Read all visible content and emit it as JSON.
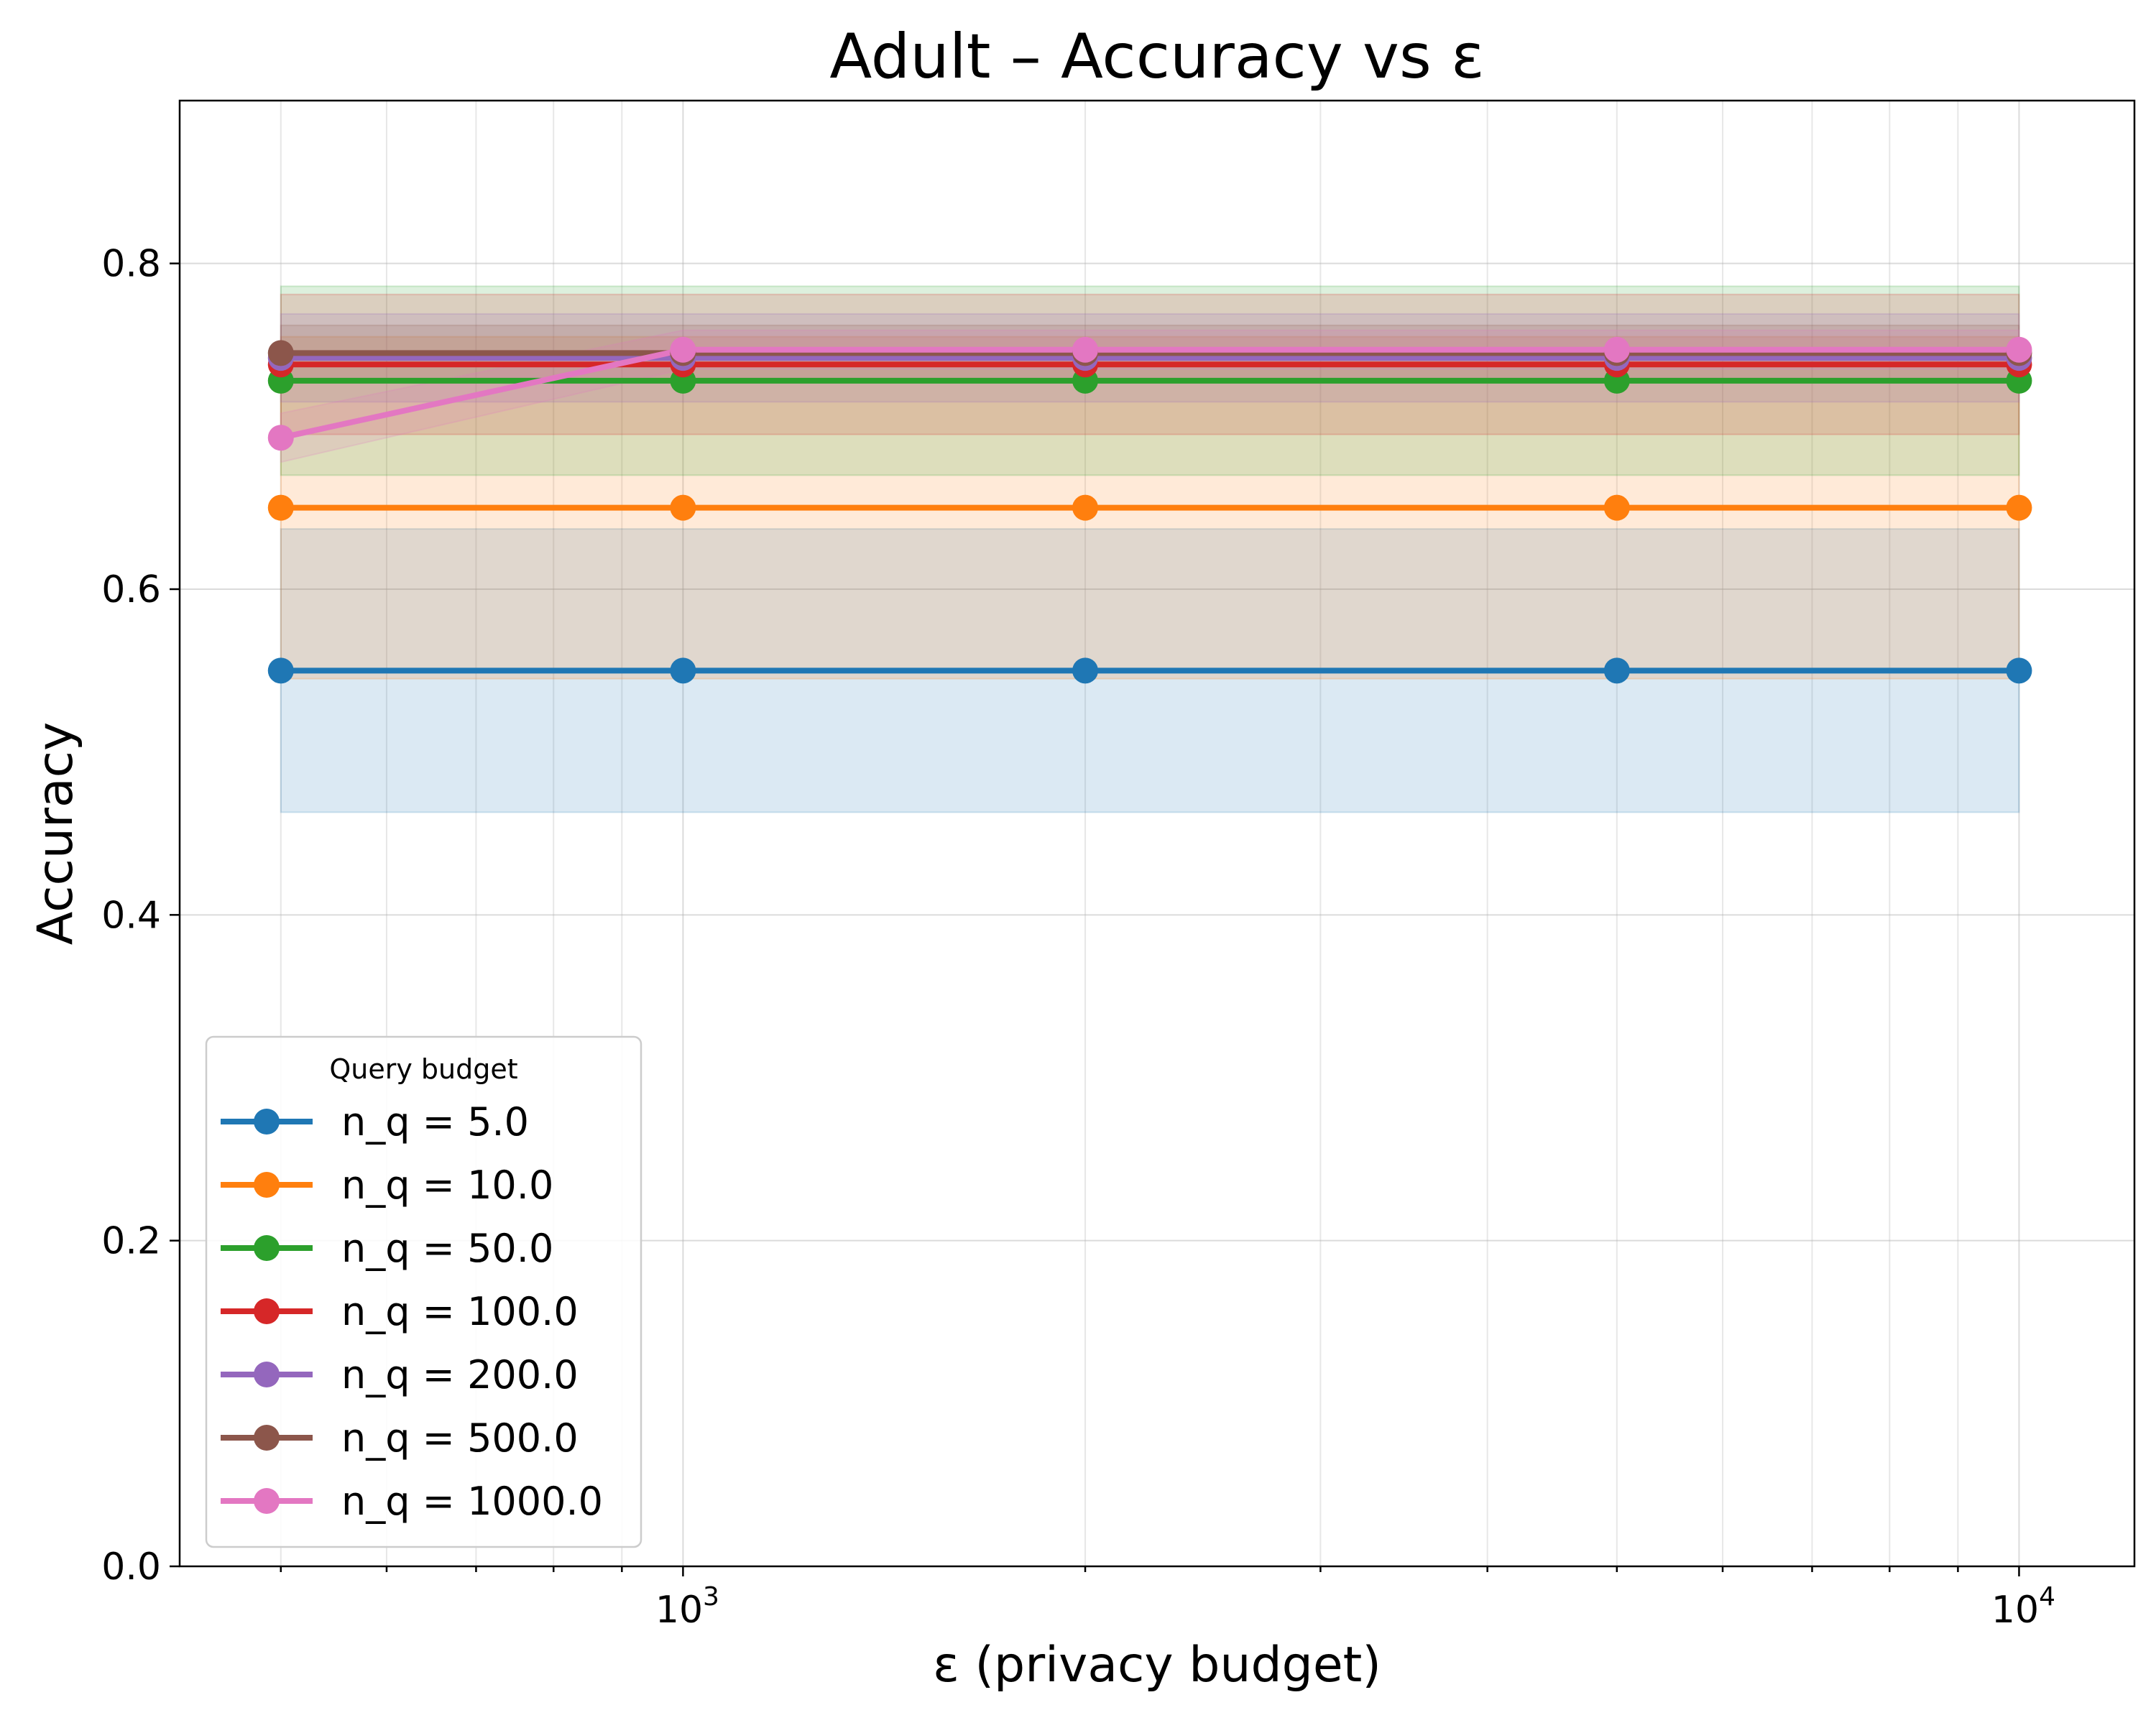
{
  "chart_data": {
    "type": "line",
    "title": "Adult – Accuracy vs ε",
    "xlabel": "ε (privacy budget)",
    "ylabel": "Accuracy",
    "x_scale": "log",
    "xlim": [
      420,
      12200
    ],
    "ylim": [
      0.0,
      0.9
    ],
    "x_tick_labels": [
      {
        "value": 1000,
        "base": "10",
        "exp": "3"
      },
      {
        "value": 10000,
        "base": "10",
        "exp": "4"
      }
    ],
    "y_ticks": [
      0.0,
      0.2,
      0.4,
      0.6,
      0.8
    ],
    "y_tick_labels": [
      "0.0",
      "0.2",
      "0.4",
      "0.6",
      "0.8"
    ],
    "grid": true,
    "legend": {
      "title": "Query budget",
      "placement": "lower-left"
    },
    "x": [
      500,
      1000,
      2000,
      5000,
      10000
    ],
    "series": [
      {
        "name": "n_q = 5.0",
        "color": "#1f77b4",
        "values": [
          0.55,
          0.55,
          0.55,
          0.55,
          0.55
        ],
        "lower": [
          0.463,
          0.463,
          0.463,
          0.463,
          0.463
        ],
        "upper": [
          0.637,
          0.637,
          0.637,
          0.637,
          0.637
        ]
      },
      {
        "name": "n_q = 10.0",
        "color": "#ff7f0e",
        "values": [
          0.65,
          0.65,
          0.65,
          0.65,
          0.65
        ],
        "lower": [
          0.545,
          0.545,
          0.545,
          0.545,
          0.545
        ],
        "upper": [
          0.755,
          0.755,
          0.755,
          0.755,
          0.755
        ]
      },
      {
        "name": "n_q = 50.0",
        "color": "#2ca02c",
        "values": [
          0.728,
          0.728,
          0.728,
          0.728,
          0.728
        ],
        "lower": [
          0.67,
          0.67,
          0.67,
          0.67,
          0.67
        ],
        "upper": [
          0.786,
          0.786,
          0.786,
          0.786,
          0.786
        ]
      },
      {
        "name": "n_q = 100.0",
        "color": "#d62728",
        "values": [
          0.738,
          0.738,
          0.738,
          0.738,
          0.738
        ],
        "lower": [
          0.695,
          0.695,
          0.695,
          0.695,
          0.695
        ],
        "upper": [
          0.781,
          0.781,
          0.781,
          0.781,
          0.781
        ]
      },
      {
        "name": "n_q = 200.0",
        "color": "#9467bd",
        "values": [
          0.742,
          0.742,
          0.742,
          0.742,
          0.742
        ],
        "lower": [
          0.715,
          0.715,
          0.715,
          0.715,
          0.715
        ],
        "upper": [
          0.769,
          0.769,
          0.769,
          0.769,
          0.769
        ]
      },
      {
        "name": "n_q = 500.0",
        "color": "#8c564b",
        "values": [
          0.745,
          0.745,
          0.745,
          0.745,
          0.745
        ],
        "lower": [
          0.728,
          0.728,
          0.728,
          0.728,
          0.728
        ],
        "upper": [
          0.762,
          0.762,
          0.762,
          0.762,
          0.762
        ]
      },
      {
        "name": "n_q = 1000.0",
        "color": "#e377c2",
        "values": [
          0.693,
          0.747,
          0.747,
          0.747,
          0.747
        ],
        "lower": [
          0.678,
          0.735,
          0.735,
          0.735,
          0.735
        ],
        "upper": [
          0.708,
          0.759,
          0.759,
          0.759,
          0.759
        ]
      }
    ]
  }
}
